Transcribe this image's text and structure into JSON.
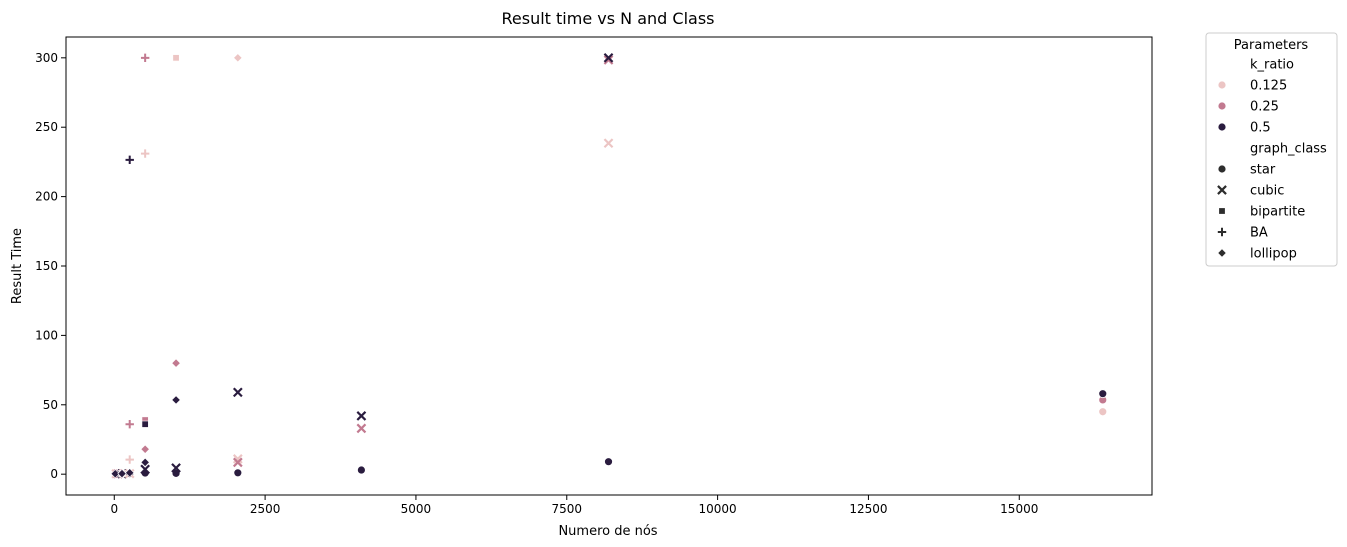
{
  "chart_data": {
    "type": "scatter",
    "title": "Result time vs N and Class",
    "xlabel": "Numero de nós",
    "ylabel": "Result Time",
    "xlim": [
      -800,
      17200
    ],
    "ylim": [
      -15,
      315
    ],
    "xticks": [
      0,
      2500,
      5000,
      7500,
      10000,
      12500,
      15000
    ],
    "xtick_labels": [
      "0",
      "2500",
      "5000",
      "7500",
      "10000",
      "12500",
      "15000"
    ],
    "yticks": [
      0,
      50,
      100,
      150,
      200,
      250,
      300
    ],
    "ytick_labels": [
      "0",
      "50",
      "100",
      "150",
      "200",
      "250",
      "300"
    ],
    "grid": false,
    "legend": {
      "title": "Parameters",
      "placement": "outside-right",
      "hue_title": "k_ratio",
      "hue_levels": [
        {
          "label": "0.125",
          "color": "#ecc5c4"
        },
        {
          "label": "0.25",
          "color": "#c27a90"
        },
        {
          "label": "0.5",
          "color": "#2a1c3f"
        }
      ],
      "style_title": "graph_class",
      "style_levels": [
        {
          "label": "star",
          "marker": "circle"
        },
        {
          "label": "cubic",
          "marker": "x"
        },
        {
          "label": "bipartite",
          "marker": "square"
        },
        {
          "label": "BA",
          "marker": "plus"
        },
        {
          "label": "lollipop",
          "marker": "diamond"
        }
      ]
    },
    "points": [
      {
        "x": 8,
        "y": 0.3,
        "k_ratio": "0.125",
        "graph_class": "star"
      },
      {
        "x": 16,
        "y": 0.3,
        "k_ratio": "0.25",
        "graph_class": "star"
      },
      {
        "x": 32,
        "y": 0.3,
        "k_ratio": "0.5",
        "graph_class": "star"
      },
      {
        "x": 64,
        "y": 0.3,
        "k_ratio": "0.125",
        "graph_class": "star"
      },
      {
        "x": 128,
        "y": 0.3,
        "k_ratio": "0.25",
        "graph_class": "star"
      },
      {
        "x": 256,
        "y": 0.4,
        "k_ratio": "0.5",
        "graph_class": "star"
      },
      {
        "x": 512,
        "y": 0.5,
        "k_ratio": "0.125",
        "graph_class": "star"
      },
      {
        "x": 512,
        "y": 0.8,
        "k_ratio": "0.5",
        "graph_class": "star"
      },
      {
        "x": 1024,
        "y": 0.6,
        "k_ratio": "0.5",
        "graph_class": "star"
      },
      {
        "x": 2048,
        "y": 1.0,
        "k_ratio": "0.5",
        "graph_class": "star"
      },
      {
        "x": 4096,
        "y": 3.0,
        "k_ratio": "0.5",
        "graph_class": "star"
      },
      {
        "x": 8192,
        "y": 9.0,
        "k_ratio": "0.5",
        "graph_class": "star"
      },
      {
        "x": 16384,
        "y": 45.0,
        "k_ratio": "0.125",
        "graph_class": "star"
      },
      {
        "x": 16384,
        "y": 53.5,
        "k_ratio": "0.25",
        "graph_class": "star"
      },
      {
        "x": 16384,
        "y": 58.0,
        "k_ratio": "0.5",
        "graph_class": "star"
      },
      {
        "x": 32,
        "y": 0.3,
        "k_ratio": "0.125",
        "graph_class": "cubic"
      },
      {
        "x": 64,
        "y": 0.3,
        "k_ratio": "0.25",
        "graph_class": "cubic"
      },
      {
        "x": 128,
        "y": 0.3,
        "k_ratio": "0.5",
        "graph_class": "cubic"
      },
      {
        "x": 256,
        "y": 0.4,
        "k_ratio": "0.125",
        "graph_class": "cubic"
      },
      {
        "x": 512,
        "y": 3.5,
        "k_ratio": "0.5",
        "graph_class": "cubic"
      },
      {
        "x": 1024,
        "y": 4.5,
        "k_ratio": "0.5",
        "graph_class": "cubic"
      },
      {
        "x": 2048,
        "y": 11.0,
        "k_ratio": "0.125",
        "graph_class": "cubic"
      },
      {
        "x": 2048,
        "y": 8.5,
        "k_ratio": "0.25",
        "graph_class": "cubic"
      },
      {
        "x": 2048,
        "y": 59.0,
        "k_ratio": "0.5",
        "graph_class": "cubic"
      },
      {
        "x": 4096,
        "y": 33.0,
        "k_ratio": "0.25",
        "graph_class": "cubic"
      },
      {
        "x": 4096,
        "y": 42.0,
        "k_ratio": "0.5",
        "graph_class": "cubic"
      },
      {
        "x": 8192,
        "y": 238.5,
        "k_ratio": "0.125",
        "graph_class": "cubic"
      },
      {
        "x": 8192,
        "y": 298.5,
        "k_ratio": "0.25",
        "graph_class": "cubic"
      },
      {
        "x": 8192,
        "y": 300.0,
        "k_ratio": "0.5",
        "graph_class": "cubic"
      },
      {
        "x": 64,
        "y": 0.3,
        "k_ratio": "0.5",
        "graph_class": "bipartite"
      },
      {
        "x": 128,
        "y": 0.4,
        "k_ratio": "0.125",
        "graph_class": "bipartite"
      },
      {
        "x": 512,
        "y": 39.0,
        "k_ratio": "0.25",
        "graph_class": "bipartite"
      },
      {
        "x": 512,
        "y": 36.0,
        "k_ratio": "0.5",
        "graph_class": "bipartite"
      },
      {
        "x": 1024,
        "y": 300.0,
        "k_ratio": "0.125",
        "graph_class": "bipartite"
      },
      {
        "x": 32,
        "y": 0.3,
        "k_ratio": "0.25",
        "graph_class": "BA"
      },
      {
        "x": 128,
        "y": 0.3,
        "k_ratio": "0.125",
        "graph_class": "BA"
      },
      {
        "x": 256,
        "y": 10.5,
        "k_ratio": "0.125",
        "graph_class": "BA"
      },
      {
        "x": 256,
        "y": 36.0,
        "k_ratio": "0.25",
        "graph_class": "BA"
      },
      {
        "x": 256,
        "y": 226.5,
        "k_ratio": "0.5",
        "graph_class": "BA"
      },
      {
        "x": 512,
        "y": 231.0,
        "k_ratio": "0.125",
        "graph_class": "BA"
      },
      {
        "x": 512,
        "y": 300.0,
        "k_ratio": "0.25",
        "graph_class": "BA"
      },
      {
        "x": 16,
        "y": 0.3,
        "k_ratio": "0.5",
        "graph_class": "lollipop"
      },
      {
        "x": 128,
        "y": 0.4,
        "k_ratio": "0.5",
        "graph_class": "lollipop"
      },
      {
        "x": 256,
        "y": 1.0,
        "k_ratio": "0.5",
        "graph_class": "lollipop"
      },
      {
        "x": 512,
        "y": 8.5,
        "k_ratio": "0.5",
        "graph_class": "lollipop"
      },
      {
        "x": 512,
        "y": 18.0,
        "k_ratio": "0.25",
        "graph_class": "lollipop"
      },
      {
        "x": 1024,
        "y": 80.0,
        "k_ratio": "0.25",
        "graph_class": "lollipop"
      },
      {
        "x": 1024,
        "y": 53.5,
        "k_ratio": "0.5",
        "graph_class": "lollipop"
      },
      {
        "x": 2048,
        "y": 300.0,
        "k_ratio": "0.125",
        "graph_class": "lollipop"
      }
    ]
  }
}
